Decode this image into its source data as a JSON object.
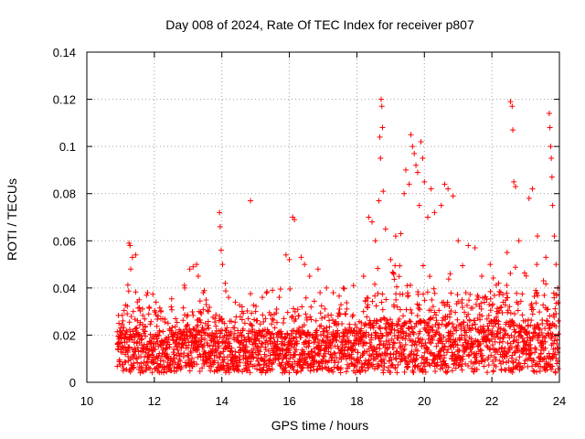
{
  "chart_data": {
    "type": "scatter",
    "title": "Day 008 of 2024, Rate Of TEC Index for receiver p807",
    "xlabel": "GPS time / hours",
    "ylabel": "ROTI / TECUs",
    "xlim": [
      10,
      24
    ],
    "ylim": [
      0,
      0.14
    ],
    "xticks": [
      "10",
      "12",
      "14",
      "16",
      "18",
      "20",
      "22",
      "24"
    ],
    "yticks": [
      "0",
      "0.02",
      "0.04",
      "0.06",
      "0.08",
      "0.1",
      "0.12",
      "0.14"
    ],
    "grid": true,
    "legend": "none",
    "marker": "+",
    "color": "#ff0000",
    "series_note": "dense point cloud, ~0.003-0.035 TECU baseline from 10.9 h to 24 h",
    "series": [
      {
        "name": "ROTI",
        "points": [
          [
            10.95,
            0.025
          ],
          [
            11.05,
            0.015
          ],
          [
            11.25,
            0.059
          ],
          [
            11.28,
            0.058
          ],
          [
            11.3,
            0.048
          ],
          [
            11.35,
            0.053
          ],
          [
            11.45,
            0.054
          ],
          [
            11.55,
            0.035
          ],
          [
            11.8,
            0.038
          ],
          [
            12.05,
            0.034
          ],
          [
            12.5,
            0.032
          ],
          [
            12.9,
            0.04
          ],
          [
            13.05,
            0.048
          ],
          [
            13.15,
            0.049
          ],
          [
            13.25,
            0.05
          ],
          [
            13.3,
            0.045
          ],
          [
            13.45,
            0.038
          ],
          [
            13.6,
            0.03
          ],
          [
            13.8,
            0.027
          ],
          [
            13.93,
            0.072
          ],
          [
            13.95,
            0.066
          ],
          [
            13.98,
            0.056
          ],
          [
            14.02,
            0.05
          ],
          [
            14.1,
            0.042
          ],
          [
            14.2,
            0.036
          ],
          [
            14.4,
            0.034
          ],
          [
            14.6,
            0.032
          ],
          [
            14.85,
            0.077
          ],
          [
            15.0,
            0.03
          ],
          [
            15.2,
            0.036
          ],
          [
            15.5,
            0.039
          ],
          [
            15.7,
            0.036
          ],
          [
            15.9,
            0.054
          ],
          [
            16.0,
            0.052
          ],
          [
            16.1,
            0.07
          ],
          [
            16.15,
            0.069
          ],
          [
            16.35,
            0.053
          ],
          [
            16.45,
            0.05
          ],
          [
            16.6,
            0.045
          ],
          [
            16.85,
            0.048
          ],
          [
            17.1,
            0.04
          ],
          [
            17.3,
            0.038
          ],
          [
            17.6,
            0.04
          ],
          [
            17.9,
            0.041
          ],
          [
            18.2,
            0.045
          ],
          [
            18.35,
            0.07
          ],
          [
            18.45,
            0.068
          ],
          [
            18.55,
            0.06
          ],
          [
            18.65,
            0.077
          ],
          [
            18.68,
            0.104
          ],
          [
            18.7,
            0.095
          ],
          [
            18.72,
            0.12
          ],
          [
            18.74,
            0.117
          ],
          [
            18.76,
            0.108
          ],
          [
            18.78,
            0.081
          ],
          [
            18.85,
            0.065
          ],
          [
            19.0,
            0.052
          ],
          [
            19.15,
            0.062
          ],
          [
            19.3,
            0.063
          ],
          [
            19.4,
            0.08
          ],
          [
            19.45,
            0.09
          ],
          [
            19.55,
            0.084
          ],
          [
            19.6,
            0.105
          ],
          [
            19.65,
            0.1
          ],
          [
            19.7,
            0.097
          ],
          [
            19.75,
            0.092
          ],
          [
            19.8,
            0.089
          ],
          [
            19.85,
            0.075
          ],
          [
            19.9,
            0.102
          ],
          [
            19.95,
            0.095
          ],
          [
            20.0,
            0.085
          ],
          [
            20.1,
            0.07
          ],
          [
            20.2,
            0.082
          ],
          [
            20.3,
            0.072
          ],
          [
            20.5,
            0.075
          ],
          [
            20.6,
            0.084
          ],
          [
            20.7,
            0.082
          ],
          [
            20.85,
            0.079
          ],
          [
            21.0,
            0.06
          ],
          [
            21.3,
            0.058
          ],
          [
            21.5,
            0.057
          ],
          [
            21.7,
            0.045
          ],
          [
            21.95,
            0.05
          ],
          [
            22.2,
            0.042
          ],
          [
            22.45,
            0.055
          ],
          [
            22.55,
            0.119
          ],
          [
            22.6,
            0.117
          ],
          [
            22.62,
            0.107
          ],
          [
            22.65,
            0.085
          ],
          [
            22.7,
            0.083
          ],
          [
            22.8,
            0.06
          ],
          [
            23.1,
            0.078
          ],
          [
            23.2,
            0.082
          ],
          [
            23.35,
            0.062
          ],
          [
            23.6,
            0.053
          ],
          [
            23.7,
            0.114
          ],
          [
            23.72,
            0.108
          ],
          [
            23.74,
            0.1
          ],
          [
            23.76,
            0.095
          ],
          [
            23.78,
            0.087
          ],
          [
            23.8,
            0.075
          ],
          [
            23.85,
            0.062
          ],
          [
            23.9,
            0.05
          ],
          [
            23.95,
            0.04
          ]
        ]
      }
    ]
  }
}
